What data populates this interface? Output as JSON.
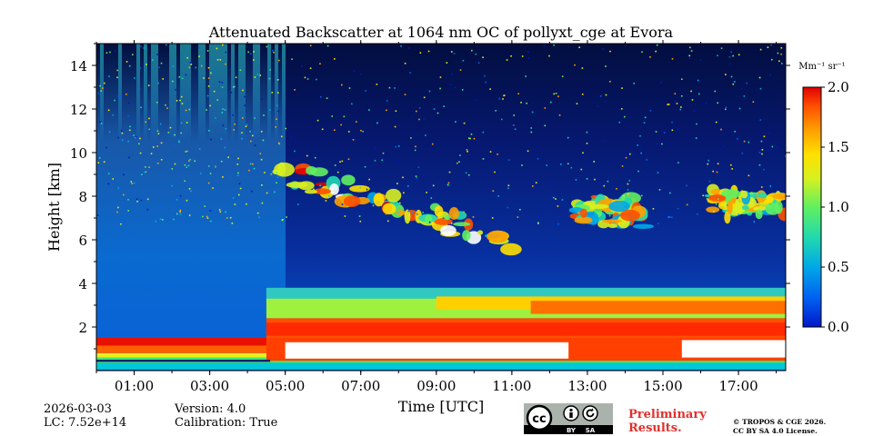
{
  "chart_data": {
    "type": "heatmap",
    "title": "Attenuated Backscatter at 1064 nm OC of pollyxt_cge at Evora",
    "xlabel": "Time [UTC]",
    "ylabel": "Height [km]",
    "xlim": [
      0.0,
      18.25
    ],
    "ylim": [
      0.0,
      15.0
    ],
    "x_ticks": [
      "01:00",
      "03:00",
      "05:00",
      "07:00",
      "09:00",
      "11:00",
      "13:00",
      "15:00",
      "17:00"
    ],
    "x_tick_values": [
      1,
      3,
      5,
      7,
      9,
      11,
      13,
      15,
      17
    ],
    "y_ticks": [
      "2",
      "4",
      "6",
      "8",
      "10",
      "12",
      "14"
    ],
    "y_tick_values": [
      2,
      4,
      6,
      8,
      10,
      12,
      14
    ],
    "colorbar": {
      "label": "Mm⁻¹ sr⁻¹",
      "range": [
        0.0,
        2.0
      ],
      "ticks": [
        "0.0",
        "0.5",
        "1.0",
        "1.5",
        "2.0"
      ],
      "tick_values": [
        0.0,
        0.5,
        1.0,
        1.5,
        2.0
      ],
      "colors": [
        "#0018c8",
        "#0060f0",
        "#00a8e8",
        "#20d8b0",
        "#60f060",
        "#d8f020",
        "#ffe000",
        "#ffa000",
        "#ff5000",
        "#e00000"
      ]
    },
    "features": [
      {
        "name": "surface aerosol layer",
        "start_time": 0.0,
        "end_time": 18.25,
        "bottom_km": 0.1,
        "top_km": 1.5,
        "value": 2.0
      },
      {
        "name": "boundary layer aerosol",
        "start_time": 4.5,
        "end_time": 18.25,
        "bottom_km": 1.5,
        "top_km": 3.8,
        "value": 1.3
      },
      {
        "name": "cirrus cloud 1",
        "start_time": 4.7,
        "end_time": 11.1,
        "bottom_km": 5.5,
        "top_km": 9.8,
        "value": 1.8
      },
      {
        "name": "cirrus cloud 2",
        "start_time": 12.7,
        "end_time": 14.5,
        "bottom_km": 6.0,
        "top_km": 8.8,
        "value": 1.7
      },
      {
        "name": "cirrus cloud 3",
        "start_time": 16.3,
        "end_time": 18.25,
        "bottom_km": 6.5,
        "top_km": 9.0,
        "value": 1.5
      }
    ]
  },
  "meta": {
    "date": "2026-03-03",
    "lc": "LC: 7.52e+14",
    "version": "Version: 4.0",
    "calibration": "Calibration: True"
  },
  "license": {
    "cc_label": "cc",
    "by_label": "BY",
    "sa_label": "SA",
    "preliminary_line1": "Preliminary",
    "preliminary_line2": "Results.",
    "copyright_line1": "© TROPOS & CGE 2026.",
    "copyright_line2": "CC BY SA 4.0 License."
  }
}
